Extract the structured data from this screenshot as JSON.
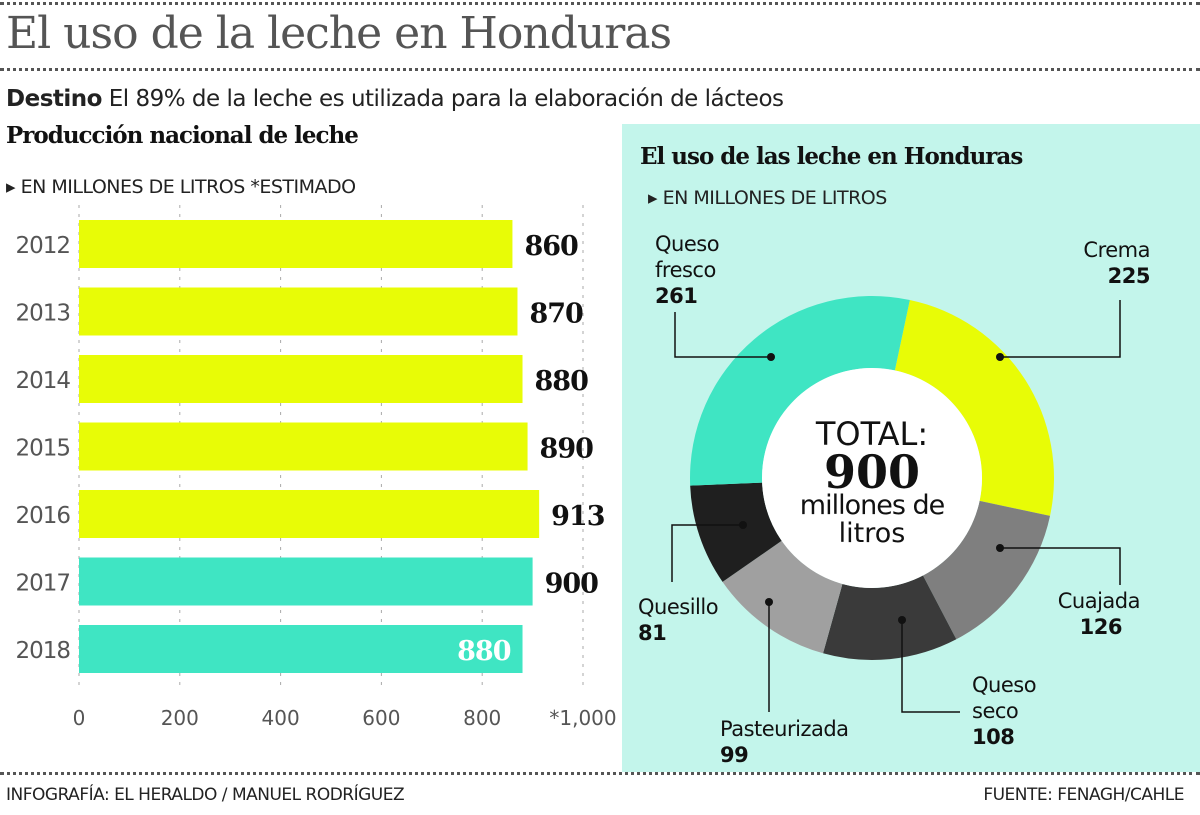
{
  "title": "El uso de la leche en Honduras",
  "subtitle": {
    "lead": "Destino",
    "text": "El 89% de la leche es utilizada para la elaboración de lácteos"
  },
  "footer": {
    "credit": "INFOGRAFÍA: EL HERALDO / MANUEL RODRÍGUEZ",
    "source": "FUENTE: FENAGH/CAHLE"
  },
  "colors": {
    "yellow": "#e8fc06",
    "teal": "#3fe5c3",
    "panel": "#c3f5eb"
  },
  "chart_data": [
    {
      "type": "bar",
      "orientation": "horizontal",
      "title": "Producción nacional de leche",
      "unit_label": "EN MILLONES DE LITROS *ESTIMADO",
      "categories": [
        "2012",
        "2013",
        "2014",
        "2015",
        "2016",
        "2017",
        "2018"
      ],
      "values": [
        860,
        870,
        880,
        890,
        913,
        900,
        880
      ],
      "bar_colors": [
        "#e8fc06",
        "#e8fc06",
        "#e8fc06",
        "#e8fc06",
        "#e8fc06",
        "#3fe5c3",
        "#3fe5c3"
      ],
      "xlim": [
        0,
        1000
      ],
      "x_ticks": [
        "0",
        "200",
        "400",
        "600",
        "800",
        "*1,000"
      ],
      "grid": true
    },
    {
      "type": "pie",
      "variant": "donut",
      "title": "El uso de las leche en Honduras",
      "unit_label": "EN MILLONES DE LITROS",
      "center_text": {
        "line1": "TOTAL:",
        "value": "900",
        "line3": "millones de",
        "line4": "litros"
      },
      "slices": [
        {
          "label": "Crema",
          "value": 225,
          "color": "#e8fc06"
        },
        {
          "label": "Cuajada",
          "value": 126,
          "color": "#7f7f7f"
        },
        {
          "label": "Queso seco",
          "value": 108,
          "color": "#3a3a3a"
        },
        {
          "label": "Pasteurizada",
          "value": 99,
          "color": "#a0a0a0"
        },
        {
          "label": "Quesillo",
          "value": 81,
          "color": "#1f1f1f"
        },
        {
          "label": "Queso fresco",
          "value": 261,
          "color": "#3fe5c3"
        }
      ]
    }
  ]
}
